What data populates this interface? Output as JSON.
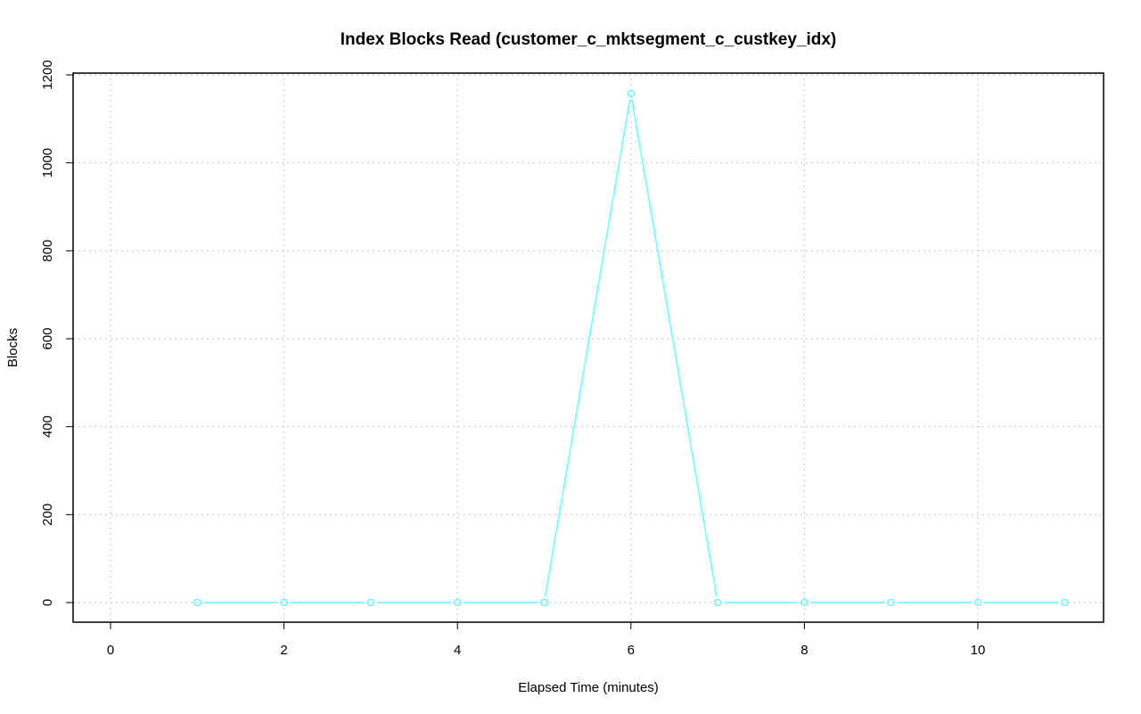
{
  "chart_data": {
    "type": "line",
    "title": "Index Blocks Read (customer_c_mktsegment_c_custkey_idx)",
    "xlabel": "Elapsed Time (minutes)",
    "ylabel": "Blocks",
    "xlim": [
      -0.4,
      11.4
    ],
    "ylim": [
      -45,
      1200
    ],
    "xticks": [
      0,
      2,
      4,
      6,
      8,
      10
    ],
    "yticks": [
      0,
      200,
      400,
      600,
      800,
      1000,
      1200
    ],
    "grid": true,
    "series": [
      {
        "color": "#66ffff",
        "x": [
          1,
          2,
          3,
          4,
          5,
          6,
          7,
          8,
          9,
          10,
          11
        ],
        "values": [
          0,
          0,
          0,
          0,
          0,
          1157,
          0,
          0,
          0,
          0,
          0
        ]
      }
    ]
  }
}
